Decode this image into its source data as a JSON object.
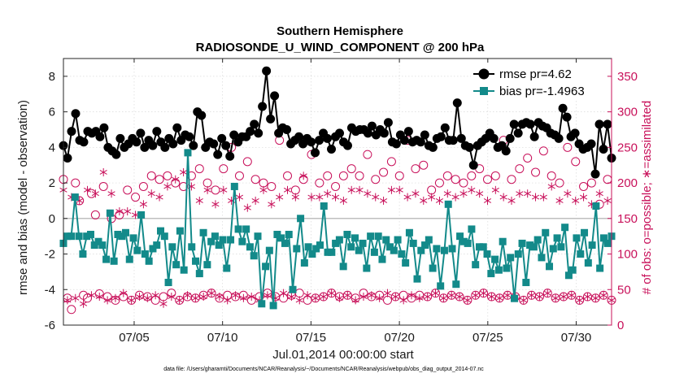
{
  "chart_data": {
    "type": "line",
    "title": "Southern Hemisphere",
    "subtitle": "RADIOSONDE_U_WIND_COMPONENT @ 200 hPa",
    "xlabel": "Jul.01,2014 00:00:00 start",
    "ylabel": "rmse and bias (model - observation)",
    "ylabel_right": "# of obs: o=possible; ∗=assimilated",
    "xlim": [
      1,
      32
    ],
    "ylim": [
      -6,
      9
    ],
    "ylim_right": [
      0,
      375
    ],
    "x_ticks": [
      5,
      10,
      15,
      20,
      25,
      30
    ],
    "x_tick_labels": [
      "07/05",
      "07/10",
      "07/15",
      "07/20",
      "07/25",
      "07/30"
    ],
    "y_ticks": [
      -6,
      -4,
      -2,
      0,
      2,
      4,
      6,
      8
    ],
    "y_tick_labels": [
      "-6",
      "-4",
      "-2",
      "0",
      "2",
      "4",
      "6",
      "8"
    ],
    "y_right_ticks": [
      0,
      50,
      100,
      150,
      200,
      250,
      300,
      350
    ],
    "y_right_tick_labels": [
      "0",
      "50",
      "100",
      "150",
      "200",
      "250",
      "300",
      "350"
    ],
    "zero_line": 0,
    "grid": true,
    "legend_position": "top-right",
    "series": [
      {
        "name": "rmse pr=4.62",
        "axis": "left",
        "color": "#000000",
        "marker": "circle",
        "values": [
          4.1,
          3.4,
          4.9,
          5.9,
          4.4,
          4.3,
          4.9,
          4.8,
          4.9,
          4.6,
          5.1,
          4.0,
          3.8,
          3.6,
          4.5,
          4.0,
          4.2,
          4.5,
          4.3,
          4.8,
          4.0,
          4.4,
          4.1,
          4.9,
          4.3,
          4.0,
          4.5,
          4.2,
          5.1,
          4.4,
          4.7,
          4.6,
          4.1,
          6.0,
          5.8,
          4.0,
          4.3,
          4.2,
          3.6,
          4.5,
          4.1,
          3.5,
          4.7,
          4.3,
          4.6,
          4.6,
          4.9,
          5.3,
          4.8,
          6.3,
          8.3,
          5.6,
          6.9,
          4.8,
          5.1,
          5.0,
          4.2,
          4.4,
          4.6,
          4.2,
          4.5,
          4.3,
          3.7,
          4.4,
          4.8,
          4.5,
          3.9,
          4.6,
          4.8,
          4.3,
          4.1,
          5.1,
          4.9,
          5.0,
          5.0,
          4.8,
          5.2,
          4.7,
          5.0,
          4.8,
          5.4,
          4.3,
          4.2,
          4.7,
          4.4,
          4.9,
          4.3,
          4.4,
          4.3,
          4.7,
          4.1,
          4.0,
          4.5,
          4.6,
          5.1,
          4.4,
          4.4,
          6.5,
          4.5,
          4.1,
          4.0,
          3.0,
          4.1,
          4.3,
          4.5,
          4.8,
          4.5,
          4.0,
          4.1,
          3.8,
          4.5,
          5.3,
          4.8,
          5.3,
          5.4,
          5.3,
          4.6,
          5.4,
          5.2,
          5.1,
          4.8,
          4.7,
          4.5,
          6.2,
          5.7,
          4.6,
          4.8,
          4.2,
          3.9,
          4.0,
          4.2,
          2.5,
          5.3,
          3.9,
          5.3,
          3.4
        ]
      },
      {
        "name": "bias pr=-1.4963",
        "axis": "left",
        "color": "#138a8a",
        "marker": "square",
        "values": [
          -1.4,
          -1.0,
          -1.0,
          1.2,
          -1.0,
          -2.0,
          -1.0,
          -0.9,
          -1.5,
          -1.3,
          -1.5,
          -2.3,
          0.3,
          -2.4,
          -0.9,
          -1.0,
          -0.8,
          -2.3,
          -1.1,
          -1.8,
          0.2,
          -2.0,
          -2.4,
          -1.7,
          -1.5,
          -0.7,
          -1.0,
          -3.6,
          -1.6,
          -2.6,
          -0.7,
          -2.9,
          3.7,
          -1.6,
          -2.4,
          -3.1,
          -0.8,
          -2.6,
          -1.3,
          -1.0,
          -1.5,
          -1.2,
          -2.8,
          -1.2,
          1.8,
          -0.6,
          -1.3,
          -0.6,
          -1.6,
          -2.1,
          -1.0,
          -4.8,
          -2.7,
          -1.8,
          -4.9,
          -0.9,
          -1.1,
          -1.4,
          -0.9,
          -4.0,
          -1.7,
          0.0,
          -2.5,
          -1.6,
          -2.0,
          -1.7,
          -1.5,
          0.7,
          -1.9,
          -1.9,
          -1.4,
          -1.2,
          -2.7,
          -0.9,
          -1.6,
          -1.1,
          -1.8,
          -1.4,
          -2.8,
          -1.0,
          -1.9,
          -1.0,
          -2.3,
          -1.2,
          -1.6,
          -1.8,
          -1.2,
          -2.0,
          -2.5,
          -0.8,
          -1.4,
          -3.4,
          -1.8,
          -1.5,
          -1.2,
          -2.8,
          -1.7,
          -3.8,
          -1.8,
          0.8,
          -1.7,
          -3.7,
          -1.0,
          -1.3,
          -1.4,
          -0.6,
          -2.6,
          -1.6,
          -1.6,
          -2.0,
          -3.1,
          -2.3,
          -2.9,
          -1.3,
          -2.8,
          -2.2,
          -4.5,
          -2.0,
          -1.4,
          -3.6,
          -1.5,
          -1.6,
          -1.2,
          -2.2,
          -0.8,
          -2.7,
          -1.7,
          -1.1,
          -1.6,
          -0.5,
          -3.2,
          -2.9,
          -1.1,
          -2.0,
          -0.8,
          -2.5,
          -1.5,
          0.7,
          -2.8,
          -1.1,
          -1.4,
          -1.0
        ]
      },
      {
        "name": "possible",
        "axis": "right",
        "color": "#c8105a",
        "marker": "open-circle",
        "values": [
          205,
          38,
          22,
          200,
          175,
          42,
          38,
          185,
          155,
          44,
          195,
          40,
          150,
          35,
          155,
          40,
          190,
          35,
          180,
          42,
          195,
          40,
          210,
          35,
          205,
          40,
          210,
          45,
          200,
          35,
          195,
          40,
          210,
          38,
          220,
          42,
          200,
          45,
          190,
          38,
          220,
          42,
          250,
          40,
          210,
          42,
          230,
          35,
          205,
          40,
          200,
          45,
          195,
          40,
          260,
          38,
          210,
          42,
          190,
          45,
          205,
          35,
          240,
          38,
          200,
          40,
          210,
          45,
          195,
          40,
          210,
          42,
          220,
          38,
          210,
          45,
          240,
          40,
          205,
          42,
          215,
          35,
          230,
          40,
          210,
          42,
          260,
          38,
          220,
          42,
          225,
          40,
          190,
          45,
          200,
          38,
          210,
          42,
          205,
          40,
          200,
          35,
          210,
          42,
          220,
          45,
          205,
          40,
          210,
          38,
          260,
          42,
          205,
          40,
          220,
          35,
          235,
          42,
          215,
          40,
          245,
          45,
          210,
          38,
          200,
          40,
          250,
          42,
          230,
          35,
          195,
          40,
          200,
          38,
          170,
          42,
          205,
          35
        ]
      },
      {
        "name": "assimilated",
        "axis": "right",
        "color": "#c8105a",
        "marker": "asterisk",
        "values": [
          190,
          35,
          180,
          38,
          175,
          30,
          190,
          42,
          185,
          40,
          215,
          35,
          185,
          38,
          160,
          45,
          160,
          35,
          155,
          40,
          170,
          38,
          185,
          42,
          180,
          30,
          195,
          40,
          205,
          35,
          215,
          42,
          195,
          38,
          175,
          40,
          190,
          45,
          170,
          40,
          190,
          35,
          175,
          42,
          180,
          38,
          165,
          40,
          175,
          35,
          190,
          42,
          170,
          38,
          180,
          45,
          190,
          40,
          180,
          35,
          210,
          42,
          180,
          38,
          180,
          40,
          185,
          45,
          180,
          38,
          175,
          42,
          190,
          35,
          190,
          40,
          185,
          42,
          180,
          38,
          175,
          45,
          190,
          40,
          190,
          35,
          180,
          42,
          185,
          38,
          175,
          40,
          180,
          45,
          175,
          38,
          185,
          42,
          180,
          40,
          185,
          35,
          190,
          42,
          185,
          45,
          175,
          40,
          190,
          38,
          180,
          42,
          175,
          40,
          185,
          35,
          185,
          42,
          180,
          40,
          180,
          45,
          195,
          38,
          175,
          40,
          185,
          42,
          175,
          35,
          180,
          40,
          170,
          38,
          185,
          42,
          175,
          35
        ]
      }
    ]
  },
  "footer": "data file: /Users/gharamti/Documents/NCAR/Reanalysis/~/Documents/NCAR/Reanalysis/webpub/obs_diag_output_2014-07.nc"
}
